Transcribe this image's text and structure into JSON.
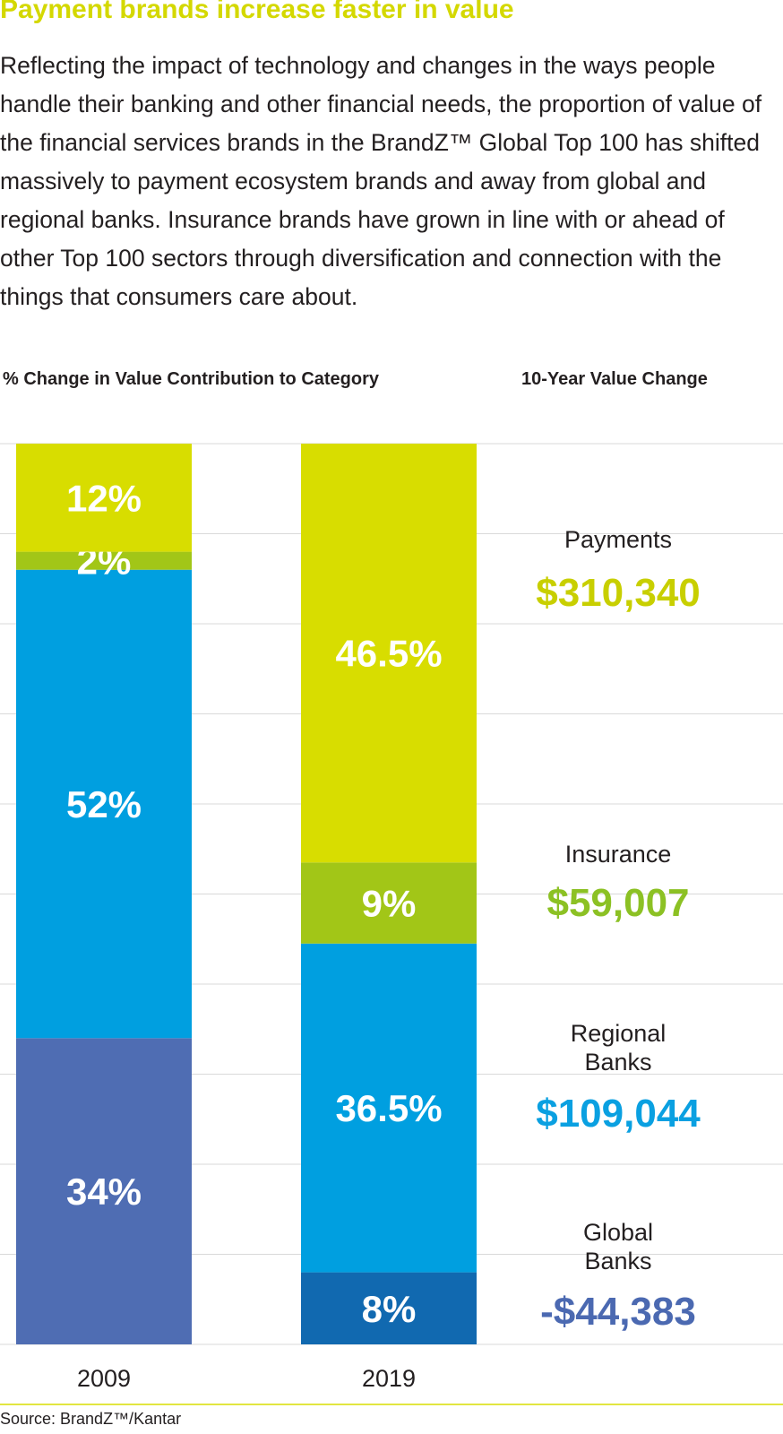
{
  "header": {
    "title": "Payment brands increase faster in value",
    "intro": "Reflecting the impact of technology and changes in the ways people handle their banking and other financial needs, the proportion of value of the financial services brands in the BrandZ™ Global Top 100 has shifted massively to payment ecosystem brands and away from global and regional banks. Insurance brands have grown in line with or ahead of other Top 100 sectors through diversification and connection with the things that consumers care about.",
    "left_heading": "% Change in Value Contribution to Category",
    "right_heading": "10-Year Value Change"
  },
  "chart_data": {
    "type": "bar",
    "stacked": true,
    "categories": [
      "2009",
      "2019"
    ],
    "series": [
      {
        "name": "Global Banks",
        "values": [
          34,
          8
        ],
        "labels": [
          "34%",
          "8%"
        ],
        "colors": [
          "#4f6db3",
          "#1169b0"
        ]
      },
      {
        "name": "Regional Banks",
        "values": [
          52,
          36.5
        ],
        "labels": [
          "52%",
          "36.5%"
        ],
        "colors": [
          "#009fe0",
          "#009fe0"
        ]
      },
      {
        "name": "Insurance",
        "values": [
          2,
          9
        ],
        "labels": [
          "2%",
          "9%"
        ],
        "colors": [
          "#a2c617",
          "#a2c617"
        ]
      },
      {
        "name": "Payments",
        "values": [
          12,
          46.5
        ],
        "labels": [
          "12%",
          "46.5%"
        ],
        "colors": [
          "#d8dd00",
          "#d8dd00"
        ]
      }
    ],
    "ylim": [
      0,
      100
    ],
    "grid": true,
    "title": "% Change in Value Contribution to Category",
    "value_change": {
      "heading": "10-Year Value Change",
      "items": [
        {
          "label_lines": [
            "Payments"
          ],
          "value": "$310,340",
          "color": "#c8cf00"
        },
        {
          "label_lines": [
            "Insurance"
          ],
          "value": "$59,007",
          "color": "#8cc124"
        },
        {
          "label_lines": [
            "Regional",
            "Banks"
          ],
          "value": "$109,044",
          "color": "#0aa0e1"
        },
        {
          "label_lines": [
            "Global",
            "Banks"
          ],
          "value": "-$44,383",
          "color": "#4b69b1"
        }
      ]
    }
  },
  "footer": {
    "source": "Source: BrandZ™/Kantar"
  }
}
